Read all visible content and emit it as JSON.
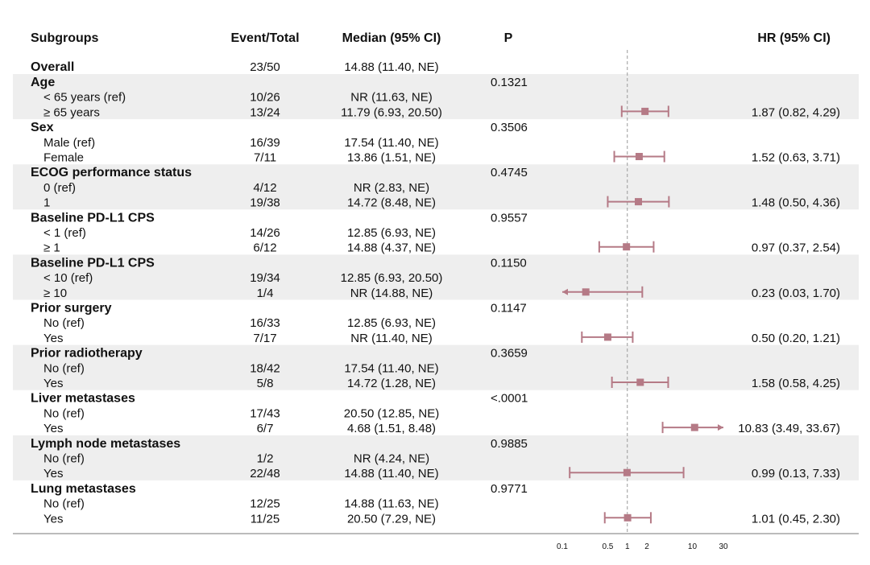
{
  "chart_data": {
    "type": "forest",
    "headers": {
      "subgroup": "Subgroups",
      "events": "Event/Total",
      "median": "Median (95% CI)",
      "p": "P",
      "hr": "HR (95% CI)"
    },
    "overall": {
      "label": "Overall",
      "events": "23/50",
      "median": "14.88 (11.40, NE)"
    },
    "groups": [
      {
        "label": "Age",
        "p": "0.1321",
        "rows": [
          {
            "label": "< 65 years (ref)",
            "events": "10/26",
            "median": "NR (11.63, NE)"
          },
          {
            "label": "≥ 65 years",
            "events": "13/24",
            "median": "11.79 (6.93, 20.50)",
            "hr": 1.87,
            "lo": 0.82,
            "hi": 4.29,
            "hr_text": "1.87 (0.82, 4.29)"
          }
        ]
      },
      {
        "label": "Sex",
        "p": "0.3506",
        "rows": [
          {
            "label": "Male (ref)",
            "events": "16/39",
            "median": "17.54 (11.40, NE)"
          },
          {
            "label": "Female",
            "events": "7/11",
            "median": "13.86 (1.51, NE)",
            "hr": 1.52,
            "lo": 0.63,
            "hi": 3.71,
            "hr_text": "1.52 (0.63, 3.71)"
          }
        ]
      },
      {
        "label": "ECOG performance status",
        "p": "0.4745",
        "rows": [
          {
            "label": "0 (ref)",
            "events": "4/12",
            "median": "NR (2.83, NE)"
          },
          {
            "label": "1",
            "events": "19/38",
            "median": "14.72 (8.48, NE)",
            "hr": 1.48,
            "lo": 0.5,
            "hi": 4.36,
            "hr_text": "1.48 (0.50, 4.36)"
          }
        ]
      },
      {
        "label": "Baseline PD-L1 CPS",
        "p": "0.9557",
        "rows": [
          {
            "label": "< 1 (ref)",
            "events": "14/26",
            "median": "12.85 (6.93, NE)"
          },
          {
            "label": "≥ 1",
            "events": "6/12",
            "median": "14.88 (4.37, NE)",
            "hr": 0.97,
            "lo": 0.37,
            "hi": 2.54,
            "hr_text": "0.97 (0.37, 2.54)"
          }
        ]
      },
      {
        "label": "Baseline PD-L1 CPS",
        "p": "0.1150",
        "rows": [
          {
            "label": "< 10 (ref)",
            "events": "19/34",
            "median": "12.85 (6.93, 20.50)"
          },
          {
            "label": "≥ 10",
            "events": "1/4",
            "median": "NR (14.88, NE)",
            "hr": 0.23,
            "lo": 0.03,
            "hi": 1.7,
            "hr_text": "0.23 (0.03, 1.70)"
          }
        ]
      },
      {
        "label": "Prior surgery",
        "p": "0.1147",
        "rows": [
          {
            "label": "No (ref)",
            "events": "16/33",
            "median": "12.85 (6.93, NE)"
          },
          {
            "label": "Yes",
            "events": "7/17",
            "median": "NR (11.40, NE)",
            "hr": 0.5,
            "lo": 0.2,
            "hi": 1.21,
            "hr_text": "0.50 (0.20, 1.21)"
          }
        ]
      },
      {
        "label": "Prior radiotherapy",
        "p": "0.3659",
        "rows": [
          {
            "label": "No (ref)",
            "events": "18/42",
            "median": "17.54 (11.40, NE)"
          },
          {
            "label": "Yes",
            "events": "5/8",
            "median": "14.72 (1.28, NE)",
            "hr": 1.58,
            "lo": 0.58,
            "hi": 4.25,
            "hr_text": "1.58 (0.58, 4.25)"
          }
        ]
      },
      {
        "label": "Liver metastases",
        "p": "<.0001",
        "rows": [
          {
            "label": "No (ref)",
            "events": "17/43",
            "median": "20.50 (12.85, NE)"
          },
          {
            "label": "Yes",
            "events": "6/7",
            "median": "4.68 (1.51, 8.48)",
            "hr": 10.83,
            "lo": 3.49,
            "hi": 33.67,
            "hr_text": "10.83 (3.49, 33.67)"
          }
        ]
      },
      {
        "label": "Lymph node metastases",
        "p": "0.9885",
        "rows": [
          {
            "label": "No (ref)",
            "events": "1/2",
            "median": "NR (4.24, NE)"
          },
          {
            "label": "Yes",
            "events": "22/48",
            "median": "14.88 (11.40, NE)",
            "hr": 0.99,
            "lo": 0.13,
            "hi": 7.33,
            "hr_text": "0.99 (0.13, 7.33)"
          }
        ]
      },
      {
        "label": "Lung metastases",
        "p": "0.9771",
        "rows": [
          {
            "label": "No (ref)",
            "events": "12/25",
            "median": "14.88 (11.63, NE)"
          },
          {
            "label": "Yes",
            "events": "11/25",
            "median": "20.50 (7.29, NE)",
            "hr": 1.01,
            "lo": 0.45,
            "hi": 2.3,
            "hr_text": "1.01 (0.45, 2.30)"
          }
        ]
      }
    ],
    "x_axis": {
      "scale": "log",
      "ticks": [
        0.1,
        0.5,
        1,
        2,
        10,
        30
      ],
      "tick_labels": [
        "0.1",
        "0.5",
        "1",
        "2",
        "10",
        "30"
      ],
      "xlim": [
        0.1,
        30
      ],
      "reference_line": 1
    },
    "colors": {
      "marker": "#b57a86",
      "group_band": "#eeeeee",
      "reference_line": "#9a9a9a",
      "axis": "#777777"
    },
    "grid": false
  }
}
